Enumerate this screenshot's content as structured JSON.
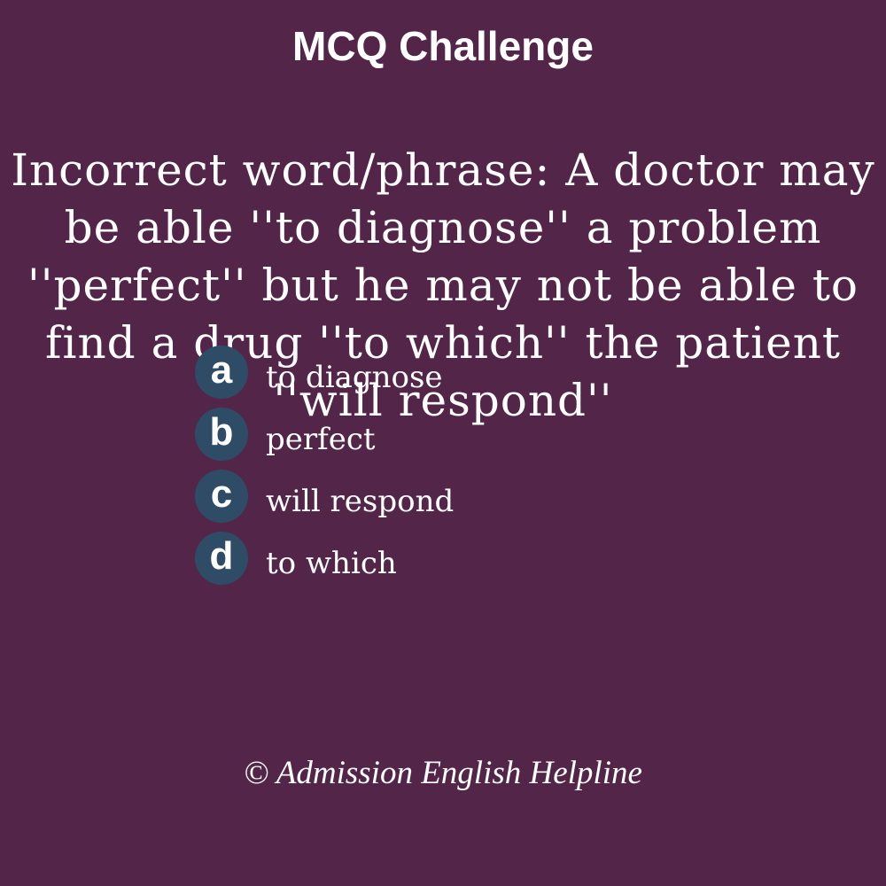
{
  "header": {
    "title": "MCQ Challenge"
  },
  "question": {
    "text": "Incorrect word/phrase: A doctor may be able ''to diagnose'' a problem ''perfect'' but he may not be able to find a drug ''to which'' the patient ''will respond''"
  },
  "options": [
    {
      "letter": "a",
      "text": "to diagnose"
    },
    {
      "letter": "b",
      "text": "perfect"
    },
    {
      "letter": "c",
      "text": "will respond"
    },
    {
      "letter": "d",
      "text": "to which"
    }
  ],
  "footer": {
    "text": "© Admission English Helpline"
  },
  "colors": {
    "background": "#532549",
    "badge": "#2f4c66",
    "text": "#ffffff"
  }
}
